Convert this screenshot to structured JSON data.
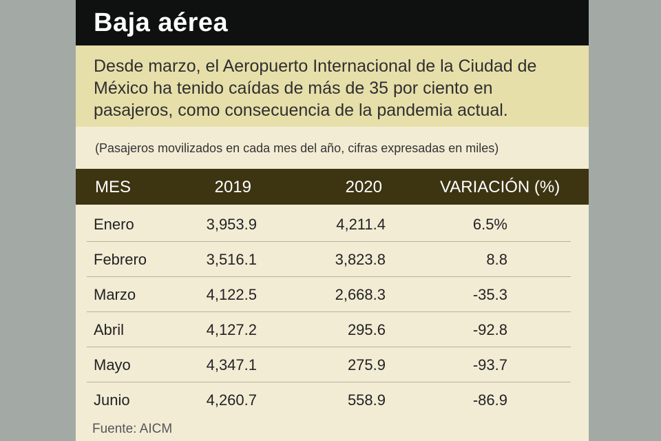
{
  "title": "Baja aérea",
  "intro": "Desde marzo, el Aeropuerto Internacional de la Ciudad de México ha tenido caídas de más de 35 por ciento en pasajeros, como consecuencia de la pandemia actual.",
  "note": "(Pasajeros movilizados en cada mes del año, cifras expresadas en miles)",
  "source": "Fuente: AICM",
  "colors": {
    "title_bg": "#0f1110",
    "intro_bg": "#e7dfaa",
    "header_bg": "#3d3412",
    "card_bg": "#f3ecd5",
    "side_bg": "#a3aaa5"
  },
  "chart_data": {
    "type": "table",
    "columns": [
      "MES",
      "2019",
      "2020",
      "VARIACIÓN (%)"
    ],
    "rows": [
      [
        "Enero",
        "3,953.9",
        "4,211.4",
        "6.5%"
      ],
      [
        "Febrero",
        "3,516.1",
        "3,823.8",
        "8.8"
      ],
      [
        "Marzo",
        "4,122.5",
        "2,668.3",
        "-35.3"
      ],
      [
        "Abril",
        "4,127.2",
        "295.6",
        "-92.8"
      ],
      [
        "Mayo",
        "4,347.1",
        "275.9",
        "-93.7"
      ],
      [
        "Junio",
        "4,260.7",
        "558.9",
        "-86.9"
      ]
    ]
  }
}
